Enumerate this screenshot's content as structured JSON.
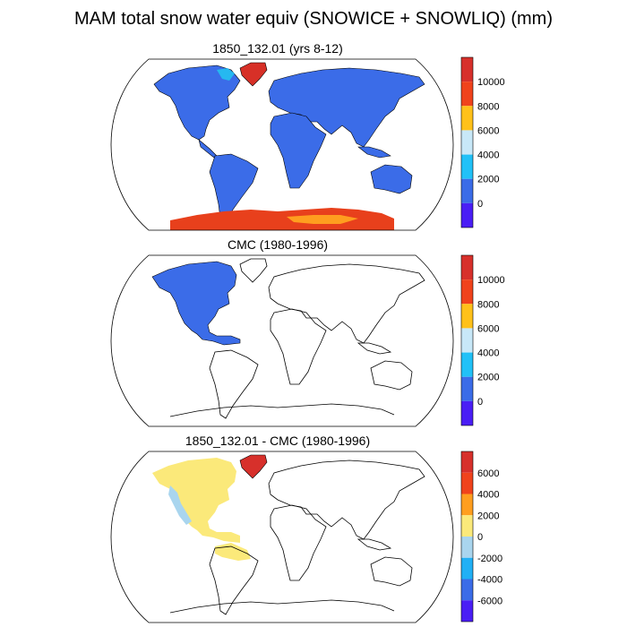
{
  "figure": {
    "title": "MAM total snow water equiv (SNOWICE + SNOWLIQ) (mm)"
  },
  "panels": [
    {
      "title": "1850_132.01 (yrs 8-12)",
      "fills": [
        {
          "region": "land-excluding-antarctica",
          "color": "#3b6ce8"
        },
        {
          "region": "greenland",
          "color": "#d73027",
          "note_color": "#ff7f00"
        },
        {
          "region": "canadian-archipelago-patch",
          "color": "#26b8f0"
        },
        {
          "region": "antarctica",
          "color": "#e8401c",
          "secondary_color": "#ff9e1f"
        }
      ],
      "colorbar": {
        "colors": [
          "#d7302b",
          "#f0431c",
          "#ffc11a",
          "#c8e8f8",
          "#21c1f7",
          "#3b6ce8",
          "#4a1ef5"
        ],
        "labels": [
          "10000",
          "8000",
          "6000",
          "4000",
          "2000",
          "0"
        ]
      }
    },
    {
      "title": "CMC (1980-1996)",
      "fills": [
        {
          "region": "north-america-to-panama",
          "color": "#3b6ce8"
        }
      ],
      "colorbar": {
        "colors": [
          "#d7302b",
          "#f0431c",
          "#ffc11a",
          "#c8e8f8",
          "#21c1f7",
          "#3b6ce8",
          "#4a1ef5"
        ],
        "labels": [
          "10000",
          "8000",
          "6000",
          "4000",
          "2000",
          "0"
        ]
      }
    },
    {
      "title": "1850_132.01 - CMC (1980-1996)",
      "fills": [
        {
          "region": "north-america-and-northern-south-america",
          "color": "#fbe97a"
        },
        {
          "region": "greenland",
          "color": "#d7302b"
        },
        {
          "region": "rockies-strip",
          "color": "#a9d5ee"
        }
      ],
      "colorbar": {
        "colors": [
          "#d7302b",
          "#f0431c",
          "#ff9e1f",
          "#fbe97a",
          "#a9d5ee",
          "#21b0f5",
          "#3b6ce8",
          "#4a1ef5"
        ],
        "labels": [
          "6000",
          "4000",
          "2000",
          "0",
          "-2000",
          "-4000",
          "-6000"
        ]
      }
    }
  ]
}
